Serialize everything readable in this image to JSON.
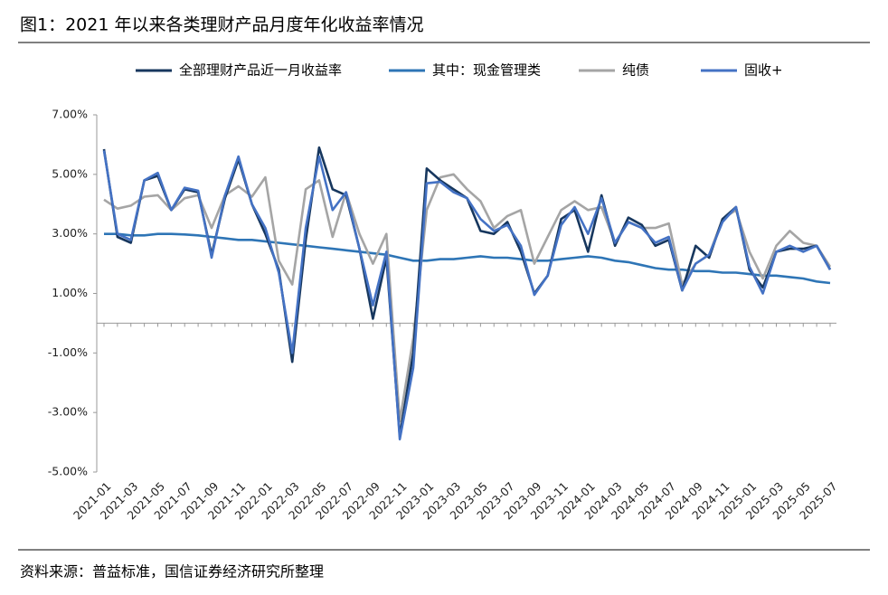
{
  "chart_data": {
    "type": "line",
    "title": "图1：2021 年以来各类理财产品月度年化收益率情况",
    "source": "资料来源：普益标准，国信证券经济研究所整理",
    "categories": [
      "2021-01",
      null,
      "2021-03",
      null,
      "2021-05",
      null,
      "2021-07",
      null,
      "2021-09",
      null,
      "2021-11",
      null,
      "2022-01",
      null,
      "2022-03",
      null,
      "2022-05",
      null,
      "2022-07",
      null,
      "2022-09",
      null,
      "2022-11",
      null,
      "2023-01",
      null,
      "2023-03",
      null,
      "2023-05",
      null,
      "2023-07",
      null,
      "2023-09",
      null,
      "2023-11",
      null,
      "2024-01",
      null,
      "2024-03",
      null,
      "2024-05",
      null,
      "2024-07",
      null,
      "2024-09",
      null,
      "2024-11",
      null,
      "2025-01",
      null,
      "2025-03",
      null,
      "2025-05",
      null,
      "2025-07"
    ],
    "series": [
      {
        "name": "全部理财产品近一月收益率",
        "color": "#17375e",
        "values": [
          5.85,
          2.9,
          2.7,
          4.8,
          4.95,
          3.8,
          4.5,
          4.4,
          2.3,
          4.2,
          5.5,
          4.0,
          3.0,
          1.8,
          -1.3,
          2.8,
          5.9,
          4.5,
          4.3,
          2.5,
          0.15,
          2.2,
          -3.8,
          -1.0,
          5.2,
          4.8,
          4.5,
          4.2,
          3.1,
          3.0,
          3.4,
          2.4,
          1.0,
          1.6,
          3.5,
          3.8,
          2.4,
          4.3,
          2.6,
          3.55,
          3.3,
          2.6,
          2.8,
          1.1,
          2.6,
          2.2,
          3.5,
          3.9,
          1.8,
          1.2,
          2.4,
          2.5,
          2.5,
          2.6,
          1.8
        ]
      },
      {
        "name": "其中：现金管理类",
        "color": "#2e75b6",
        "values": [
          3.0,
          3.0,
          2.95,
          2.95,
          3.0,
          3.0,
          2.98,
          2.95,
          2.9,
          2.85,
          2.8,
          2.8,
          2.75,
          2.7,
          2.65,
          2.6,
          2.55,
          2.5,
          2.45,
          2.4,
          2.35,
          2.3,
          2.2,
          2.1,
          2.1,
          2.15,
          2.15,
          2.2,
          2.25,
          2.2,
          2.2,
          2.15,
          2.1,
          2.1,
          2.15,
          2.2,
          2.25,
          2.2,
          2.1,
          2.05,
          1.95,
          1.85,
          1.8,
          1.8,
          1.75,
          1.75,
          1.7,
          1.7,
          1.65,
          1.6,
          1.6,
          1.55,
          1.5,
          1.4,
          1.35
        ]
      },
      {
        "name": "纯债",
        "color": "#a5a5a5",
        "values": [
          4.15,
          3.85,
          3.95,
          4.25,
          4.3,
          3.8,
          4.2,
          4.3,
          3.2,
          4.3,
          4.6,
          4.25,
          4.9,
          2.1,
          1.3,
          4.5,
          4.8,
          2.9,
          4.4,
          3.0,
          2.0,
          3.0,
          -3.3,
          -0.5,
          3.8,
          4.9,
          5.0,
          4.5,
          4.1,
          3.2,
          3.6,
          3.8,
          2.0,
          2.9,
          3.8,
          4.1,
          3.8,
          3.9,
          2.7,
          3.4,
          3.2,
          3.2,
          3.35,
          1.3,
          2.0,
          2.3,
          3.5,
          3.8,
          2.4,
          1.5,
          2.6,
          3.1,
          2.7,
          2.6,
          1.9
        ]
      },
      {
        "name": "固收+",
        "color": "#4472c4",
        "values": [
          5.8,
          3.0,
          2.8,
          4.8,
          5.05,
          3.8,
          4.55,
          4.45,
          2.2,
          4.3,
          5.6,
          4.0,
          3.2,
          1.7,
          -1.0,
          3.2,
          5.6,
          3.8,
          4.4,
          2.5,
          0.6,
          2.4,
          -3.9,
          -1.5,
          4.7,
          4.75,
          4.4,
          4.2,
          3.5,
          3.1,
          3.3,
          2.6,
          0.95,
          1.6,
          3.3,
          3.9,
          3.0,
          4.2,
          2.7,
          3.4,
          3.2,
          2.7,
          2.9,
          1.1,
          2.0,
          2.3,
          3.4,
          3.9,
          1.9,
          1.0,
          2.4,
          2.6,
          2.4,
          2.6,
          1.8
        ]
      }
    ],
    "ylim": [
      -5,
      7
    ],
    "yticks": [
      {
        "value": -5,
        "label": "-5.00%"
      },
      {
        "value": -3,
        "label": "-3.00%"
      },
      {
        "value": -1,
        "label": "-1.00%"
      },
      {
        "value": 1,
        "label": "1.00%"
      },
      {
        "value": 3,
        "label": "3.00%"
      },
      {
        "value": 5,
        "label": "5.00%"
      },
      {
        "value": 7,
        "label": "7.00%"
      }
    ],
    "legend": "top"
  }
}
